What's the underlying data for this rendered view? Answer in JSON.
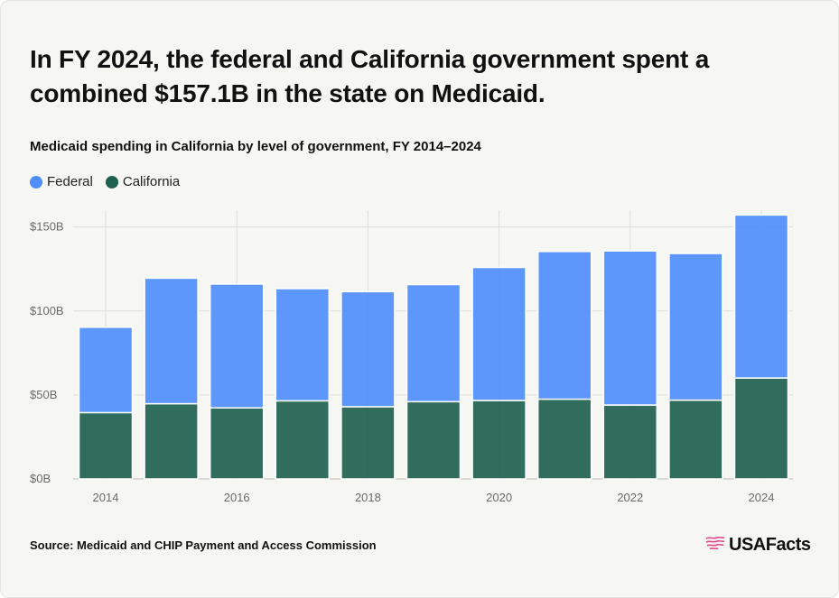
{
  "headline": "In FY 2024, the federal and California government spent a combined $157.1B in the state on Medicaid.",
  "subtitle": "Medicaid spending in California by level of government, FY 2014–2024",
  "legend": [
    {
      "label": "Federal",
      "color": "#4f8efc"
    },
    {
      "label": "California",
      "color": "#1f6150"
    }
  ],
  "chart_data": {
    "type": "bar",
    "stacked": true,
    "categories": [
      "2014",
      "2015",
      "2016",
      "2017",
      "2018",
      "2019",
      "2020",
      "2021",
      "2022",
      "2023",
      "2024"
    ],
    "series": [
      {
        "name": "California",
        "color": "#1f6150",
        "values": [
          39.5,
          44.8,
          42.3,
          46.5,
          43.0,
          46.0,
          46.7,
          47.5,
          44.0,
          46.9,
          60.1
        ]
      },
      {
        "name": "Federal",
        "color": "#4f8efc",
        "values": [
          50.8,
          74.7,
          73.7,
          66.8,
          68.5,
          69.7,
          79.2,
          87.9,
          91.7,
          87.3,
          97.0
        ]
      }
    ],
    "ylim": [
      0,
      160
    ],
    "y_ticks": [
      0,
      50,
      100,
      150
    ],
    "y_tick_labels": [
      "$0B",
      "$50B",
      "$100B",
      "$150B"
    ],
    "x_tick_labels": [
      "2014",
      "2016",
      "2018",
      "2020",
      "2022",
      "2024"
    ],
    "x_tick_categories": [
      "2014",
      "2016",
      "2018",
      "2020",
      "2022",
      "2024"
    ],
    "grid": true,
    "legend_position": "top-left"
  },
  "source": "Source: Medicaid and CHIP Payment and Access Commission",
  "brand": {
    "name": "USAFacts",
    "logo_icon": "us-map-stripes-icon"
  }
}
